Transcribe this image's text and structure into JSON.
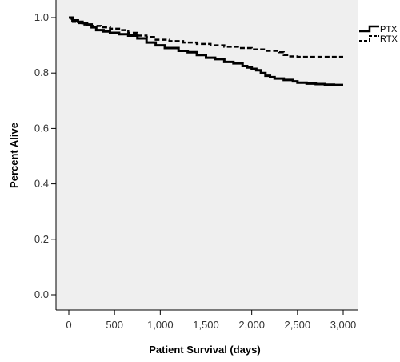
{
  "chart_data": {
    "type": "line",
    "xlabel": "Patient Survival (days)",
    "ylabel": "Percent Alive",
    "xlim": [
      0,
      3000
    ],
    "ylim": [
      0,
      1.0
    ],
    "xticks": [
      0,
      500,
      1000,
      1500,
      2000,
      2500,
      3000
    ],
    "xtick_labels": [
      "0",
      "500",
      "1,000",
      "1,500",
      "2,000",
      "2,500",
      "3,000"
    ],
    "yticks": [
      0.0,
      0.2,
      0.4,
      0.6,
      0.8,
      1.0
    ],
    "ytick_labels": [
      "0.0",
      "0.2",
      "0.4",
      "0.6",
      "0.8",
      "1.0"
    ],
    "grid": false,
    "plot_background": "#efefef",
    "legend_position": "right",
    "series": [
      {
        "name": "PTX",
        "line_style": "solid",
        "color": "#000000",
        "x": [
          0,
          40,
          100,
          150,
          200,
          250,
          300,
          380,
          450,
          550,
          650,
          750,
          850,
          950,
          1050,
          1200,
          1300,
          1400,
          1500,
          1600,
          1700,
          1800,
          1900,
          1950,
          2000,
          2050,
          2100,
          2150,
          2200,
          2250,
          2350,
          2450,
          2500,
          2600,
          2700,
          2800,
          2900,
          3000
        ],
        "y": [
          1.0,
          0.99,
          0.985,
          0.98,
          0.975,
          0.965,
          0.955,
          0.95,
          0.945,
          0.94,
          0.935,
          0.925,
          0.91,
          0.9,
          0.89,
          0.88,
          0.875,
          0.865,
          0.855,
          0.85,
          0.84,
          0.835,
          0.825,
          0.82,
          0.815,
          0.81,
          0.8,
          0.79,
          0.785,
          0.78,
          0.775,
          0.77,
          0.765,
          0.762,
          0.76,
          0.758,
          0.757,
          0.757
        ]
      },
      {
        "name": "RTX",
        "line_style": "dashed",
        "color": "#000000",
        "x": [
          0,
          30,
          80,
          150,
          250,
          350,
          450,
          550,
          650,
          750,
          850,
          950,
          1100,
          1250,
          1400,
          1550,
          1700,
          1850,
          2000,
          2150,
          2300,
          2350,
          2400,
          2500,
          2600,
          2700,
          2800,
          2900,
          3000
        ],
        "y": [
          1.0,
          0.985,
          0.98,
          0.975,
          0.97,
          0.965,
          0.96,
          0.955,
          0.945,
          0.935,
          0.93,
          0.92,
          0.915,
          0.91,
          0.905,
          0.9,
          0.895,
          0.89,
          0.885,
          0.88,
          0.875,
          0.865,
          0.86,
          0.858,
          0.858,
          0.858,
          0.858,
          0.858,
          0.858
        ]
      }
    ]
  }
}
